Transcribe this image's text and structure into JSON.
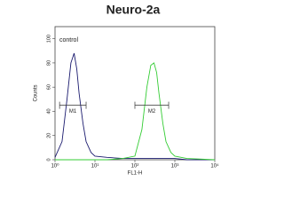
{
  "chart_data": {
    "type": "line",
    "title": "Neuro-2a",
    "xlabel": "FL1-H",
    "ylabel": "Counts",
    "annotation": "control",
    "xscale": "log",
    "xlim": [
      1,
      10000
    ],
    "xticks": [
      {
        "value": 1,
        "label": "10⁰"
      },
      {
        "value": 10,
        "label": "10¹"
      },
      {
        "value": 100,
        "label": "10²"
      },
      {
        "value": 1000,
        "label": "10³"
      },
      {
        "value": 10000,
        "label": "10⁴"
      }
    ],
    "ylim": [
      0,
      110
    ],
    "yticks": [
      0,
      20,
      40,
      60,
      80,
      100
    ],
    "x": [
      1,
      1.5,
      2,
      2.5,
      3,
      3.5,
      4,
      5,
      6,
      8,
      10,
      20,
      50,
      100,
      150,
      200,
      250,
      300,
      350,
      400,
      500,
      600,
      800,
      1000,
      2000,
      10000
    ],
    "series": [
      {
        "name": "control",
        "color": "#1a1a6e",
        "values": [
          2,
          15,
          50,
          80,
          88,
          75,
          55,
          30,
          15,
          6,
          3,
          2,
          1,
          1,
          1,
          1,
          1,
          1,
          1,
          1,
          1,
          1,
          1,
          1,
          0,
          0
        ]
      },
      {
        "name": "Neuro-2a",
        "color": "#33cc33",
        "values": [
          0,
          0,
          0,
          0,
          0,
          0,
          0,
          0,
          0,
          0,
          0,
          0,
          1,
          3,
          25,
          60,
          78,
          80,
          72,
          55,
          30,
          15,
          6,
          3,
          1,
          0
        ]
      }
    ],
    "gates": [
      {
        "label": "M1",
        "range": [
          1.3,
          6
        ],
        "level": 45
      },
      {
        "label": "M2",
        "range": [
          100,
          700
        ],
        "level": 45
      }
    ]
  }
}
